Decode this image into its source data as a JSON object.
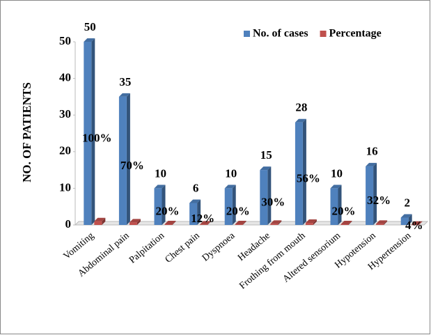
{
  "chart_data": {
    "type": "bar3d",
    "y_label": "NO. OF PATIENTS",
    "categories": [
      "Vomiting",
      "Abdominal pain",
      "Palpitation",
      "Chest pain",
      "Dyspnoea",
      "Headache",
      "Frothing from mouth",
      "Altered sensorium",
      "Hypotension",
      "Hypertension"
    ],
    "series": [
      {
        "name": "No. of cases",
        "color": "#4f81bd",
        "values": [
          50,
          35,
          10,
          6,
          10,
          15,
          28,
          10,
          16,
          2
        ]
      },
      {
        "name": "Percentage",
        "color": "#c0504d",
        "values": [
          1,
          0.7,
          0.2,
          0.12,
          0.2,
          0.3,
          0.56,
          0.2,
          0.32,
          0.04
        ],
        "value_labels": [
          "100%",
          "70%",
          "20%",
          "12%",
          "20%",
          "30%",
          "56%",
          "20%",
          "32%",
          "4%"
        ]
      }
    ],
    "ylim": [
      0,
      50
    ],
    "yticks": [
      0,
      10,
      20,
      30,
      40,
      50
    ],
    "legend": "top-right"
  }
}
